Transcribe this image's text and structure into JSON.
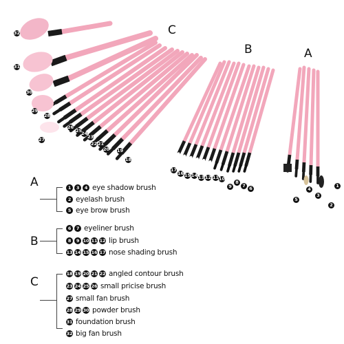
{
  "groups": {
    "A": "A",
    "B": "B",
    "C": "C"
  },
  "legend": {
    "A": {
      "letter": "A",
      "rows": [
        {
          "nums": [
            "1",
            "3",
            "4"
          ],
          "label": "eye shadow brush"
        },
        {
          "nums": [
            "2"
          ],
          "label": "eyelash brush"
        },
        {
          "nums": [
            "5"
          ],
          "label": "eye brow brush"
        }
      ]
    },
    "B": {
      "letter": "B",
      "rows": [
        {
          "nums": [
            "6",
            "7"
          ],
          "label": "eyeliner brush"
        },
        {
          "nums": [
            "8",
            "9",
            "10",
            "11",
            "12"
          ],
          "label": "lip brush"
        },
        {
          "nums": [
            "13",
            "14",
            "15",
            "16",
            "17"
          ],
          "label": "nose shading brush"
        }
      ]
    },
    "C": {
      "letter": "C",
      "rows": [
        {
          "nums": [
            "18",
            "19",
            "20",
            "21",
            "22"
          ],
          "label": "angled contour brush"
        },
        {
          "nums": [
            "23",
            "24",
            "25",
            "26"
          ],
          "label": "small pricise brush"
        },
        {
          "nums": [
            "27"
          ],
          "label": "small fan brush"
        },
        {
          "nums": [
            "28",
            "29",
            "30"
          ],
          "label": "powder brush"
        },
        {
          "nums": [
            "31"
          ],
          "label": "foundation brush"
        },
        {
          "nums": [
            "32"
          ],
          "label": "big fan brush"
        }
      ]
    }
  },
  "photo_numbers": {
    "A": [
      "1",
      "2",
      "3",
      "4",
      "5"
    ],
    "B": [
      "6",
      "7",
      "8",
      "9",
      "10",
      "11",
      "12",
      "13",
      "14",
      "15",
      "16",
      "17"
    ],
    "C": [
      "18",
      "19",
      "20",
      "21",
      "22",
      "23",
      "24",
      "25",
      "26",
      "27",
      "28",
      "29",
      "30",
      "31",
      "32"
    ]
  },
  "colors": {
    "handle": "#f2a7bb",
    "ferrule": "#1a1a1a",
    "bristle_pink": "#f7c3d2",
    "bristle_white": "#ffffff"
  }
}
